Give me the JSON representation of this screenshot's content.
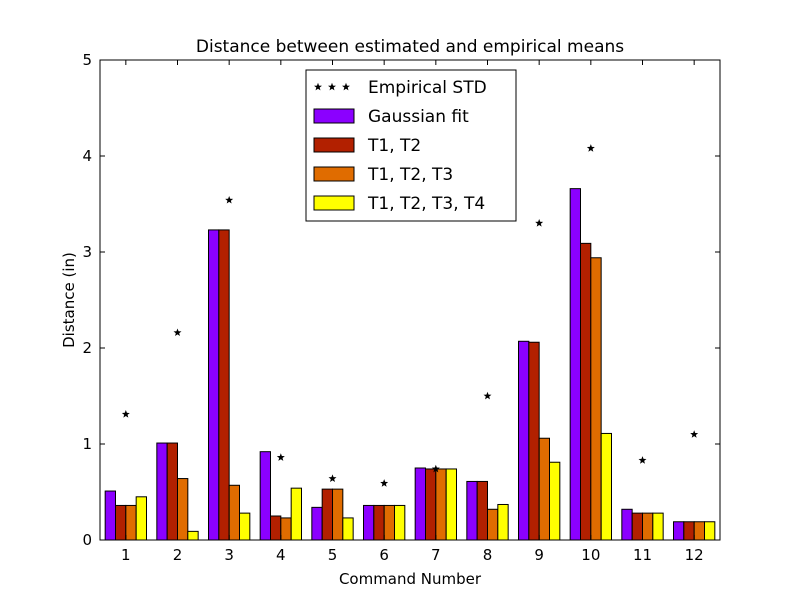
{
  "chart_data": {
    "type": "bar",
    "title": "Distance between estimated and empirical means",
    "xlabel": "Command Number",
    "ylabel": "Distance (in)",
    "ylim": [
      0,
      5
    ],
    "yticks": [
      "0",
      "1",
      "2",
      "3",
      "4",
      "5"
    ],
    "categories": [
      "1",
      "2",
      "3",
      "4",
      "5",
      "6",
      "7",
      "8",
      "9",
      "10",
      "11",
      "12"
    ],
    "grid": false,
    "legend_position": "top-center",
    "series": [
      {
        "name": "Gaussian fit",
        "color": "#8b00ff",
        "values": [
          0.51,
          1.01,
          3.23,
          0.92,
          0.34,
          0.36,
          0.75,
          0.61,
          2.07,
          3.66,
          0.32,
          0.19
        ]
      },
      {
        "name": "T1, T2",
        "color": "#b22000",
        "values": [
          0.36,
          1.01,
          3.23,
          0.25,
          0.53,
          0.36,
          0.74,
          0.61,
          2.06,
          3.09,
          0.28,
          0.19
        ]
      },
      {
        "name": "T1, T2, T3",
        "color": "#e06c00",
        "values": [
          0.36,
          0.64,
          0.57,
          0.23,
          0.53,
          0.36,
          0.74,
          0.32,
          1.06,
          2.94,
          0.28,
          0.19
        ]
      },
      {
        "name": "T1, T2, T3, T4",
        "color": "#ffff00",
        "values": [
          0.45,
          0.09,
          0.28,
          0.54,
          0.23,
          0.36,
          0.74,
          0.37,
          0.81,
          1.11,
          0.28,
          0.19
        ]
      }
    ],
    "scatter": {
      "name": "Empirical STD",
      "color": "#000000",
      "values": [
        1.31,
        2.16,
        3.54,
        0.86,
        0.64,
        0.59,
        0.74,
        1.5,
        3.3,
        4.08,
        0.83,
        1.1
      ]
    }
  }
}
